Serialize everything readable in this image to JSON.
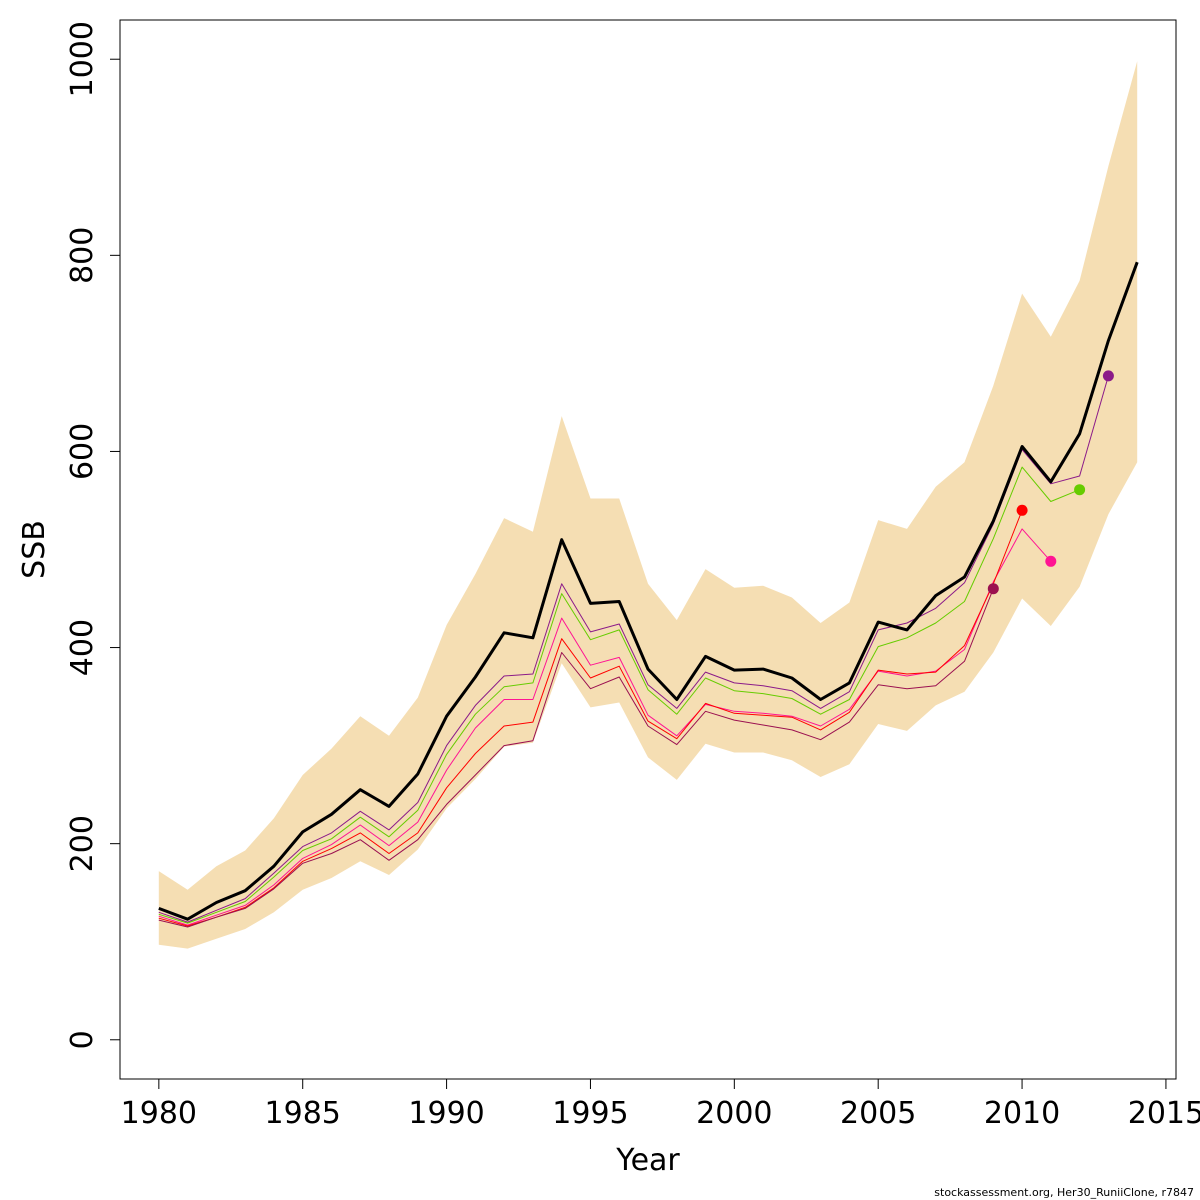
{
  "chart_data": {
    "type": "line",
    "xlabel": "Year",
    "ylabel": "SSB",
    "xlim": [
      1978.65,
      2015.35
    ],
    "ylim": [
      -40,
      1040
    ],
    "x_ticks": [
      1980,
      1985,
      1990,
      1995,
      2000,
      2005,
      2010,
      2015
    ],
    "y_ticks": [
      0,
      200,
      400,
      600,
      800,
      1000
    ],
    "credit": "stockassessment.org, Her30_RuniiClone, r7847",
    "band": {
      "color": "#f5deb3",
      "x": [
        1980,
        1981,
        1982,
        1983,
        1984,
        1985,
        1986,
        1987,
        1988,
        1989,
        1990,
        1991,
        1992,
        1993,
        1994,
        1995,
        1996,
        1997,
        1998,
        1999,
        2000,
        2001,
        2002,
        2003,
        2004,
        2005,
        2006,
        2007,
        2008,
        2009,
        2010,
        2011,
        2012,
        2013,
        2014
      ],
      "upper": [
        172,
        153,
        177,
        193,
        226,
        270,
        297,
        330,
        310,
        349,
        423,
        475,
        532,
        518,
        636,
        552,
        552,
        465,
        428,
        480,
        461,
        463,
        451,
        425,
        446,
        530,
        521,
        564,
        589,
        667,
        761,
        717,
        774,
        891,
        998
      ],
      "lower": [
        97,
        93,
        103,
        113,
        130,
        153,
        165,
        182,
        168,
        194,
        236,
        266,
        299,
        303,
        384,
        339,
        344,
        288,
        265,
        302,
        293,
        293,
        285,
        268,
        281,
        322,
        315,
        341,
        355,
        395,
        450,
        422,
        462,
        536,
        589
      ]
    },
    "series": [
      {
        "color": "#000000",
        "width": 3,
        "x": [
          1980,
          1981,
          1982,
          1983,
          1984,
          1985,
          1986,
          1987,
          1988,
          1989,
          1990,
          1991,
          1992,
          1993,
          1994,
          1995,
          1996,
          1997,
          1998,
          1999,
          2000,
          2001,
          2002,
          2003,
          2004,
          2005,
          2006,
          2007,
          2008,
          2009,
          2010,
          2011,
          2012,
          2013,
          2014
        ],
        "values": [
          134,
          123,
          140,
          152,
          177,
          212,
          230,
          255,
          238,
          271,
          330,
          370,
          415,
          410,
          510,
          445,
          447,
          378,
          347,
          391,
          377,
          378,
          369,
          347,
          364,
          426,
          418,
          453,
          472,
          529,
          605,
          569,
          618,
          713,
          793
        ]
      },
      {
        "color": "#8b1a89",
        "width": 1,
        "x": [
          1980,
          1981,
          1982,
          1983,
          1984,
          1985,
          1986,
          1987,
          1988,
          1989,
          1990,
          1991,
          1992,
          1993,
          1994,
          1995,
          1996,
          1997,
          1998,
          1999,
          2000,
          2001,
          2002,
          2003,
          2004,
          2005,
          2006,
          2007,
          2008,
          2009,
          2010,
          2011,
          2012,
          2013
        ],
        "values": [
          130,
          120,
          132,
          144,
          170,
          197,
          211,
          233,
          214,
          242,
          300,
          341,
          371,
          373,
          465,
          416,
          424,
          362,
          338,
          375,
          364,
          361,
          356,
          338,
          355,
          418,
          425,
          440,
          466,
          526,
          602,
          567,
          575,
          677
        ],
        "end_point": true
      },
      {
        "color": "#66cc00",
        "width": 1,
        "x": [
          1980,
          1981,
          1982,
          1983,
          1984,
          1985,
          1986,
          1987,
          1988,
          1989,
          1990,
          1991,
          1992,
          1993,
          1994,
          1995,
          1996,
          1997,
          1998,
          1999,
          2000,
          2001,
          2002,
          2003,
          2004,
          2005,
          2006,
          2007,
          2008,
          2009,
          2010,
          2011,
          2012
        ],
        "values": [
          128,
          119,
          130,
          141,
          166,
          193,
          205,
          227,
          207,
          234,
          291,
          332,
          360,
          364,
          455,
          408,
          418,
          357,
          332,
          369,
          356,
          353,
          348,
          332,
          347,
          401,
          410,
          425,
          447,
          511,
          584,
          549,
          561
        ],
        "end_point": true
      },
      {
        "color": "#ff1493",
        "width": 1,
        "x": [
          1980,
          1981,
          1982,
          1983,
          1984,
          1985,
          1986,
          1987,
          1988,
          1989,
          1990,
          1991,
          1992,
          1993,
          1994,
          1995,
          1996,
          1997,
          1998,
          1999,
          2000,
          2001,
          2002,
          2003,
          2004,
          2005,
          2006,
          2007,
          2008,
          2009,
          2010,
          2011
        ],
        "values": [
          126,
          117,
          127,
          137,
          158,
          185,
          199,
          219,
          198,
          222,
          275,
          318,
          347,
          347,
          430,
          382,
          390,
          331,
          310,
          342,
          335,
          333,
          330,
          320,
          337,
          376,
          371,
          376,
          398,
          467,
          521,
          488
        ],
        "end_point": true
      },
      {
        "color": "#ff0000",
        "width": 1,
        "x": [
          1980,
          1981,
          1982,
          1983,
          1984,
          1985,
          1986,
          1987,
          1988,
          1989,
          1990,
          1991,
          1992,
          1993,
          1994,
          1995,
          1996,
          1997,
          1998,
          1999,
          2000,
          2001,
          2002,
          2003,
          2004,
          2005,
          2006,
          2007,
          2008,
          2009,
          2010
        ],
        "values": [
          124,
          116,
          125,
          135,
          155,
          182,
          195,
          211,
          190,
          211,
          257,
          292,
          320,
          324,
          409,
          369,
          381,
          325,
          307,
          343,
          333,
          331,
          329,
          316,
          334,
          377,
          373,
          375,
          402,
          465,
          540
        ],
        "end_point": true
      },
      {
        "color": "#9b1050",
        "width": 1,
        "x": [
          1980,
          1981,
          1982,
          1983,
          1984,
          1985,
          1986,
          1987,
          1988,
          1989,
          1990,
          1991,
          1992,
          1993,
          1994,
          1995,
          1996,
          1997,
          1998,
          1999,
          2000,
          2001,
          2002,
          2003,
          2004,
          2005,
          2006,
          2007,
          2008,
          2009
        ],
        "values": [
          122,
          115,
          125,
          134,
          154,
          180,
          190,
          204,
          183,
          204,
          240,
          270,
          300,
          305,
          395,
          358,
          370,
          320,
          301,
          335,
          326,
          321,
          316,
          306,
          324,
          362,
          358,
          361,
          386,
          460
        ],
        "end_point": true
      }
    ]
  }
}
